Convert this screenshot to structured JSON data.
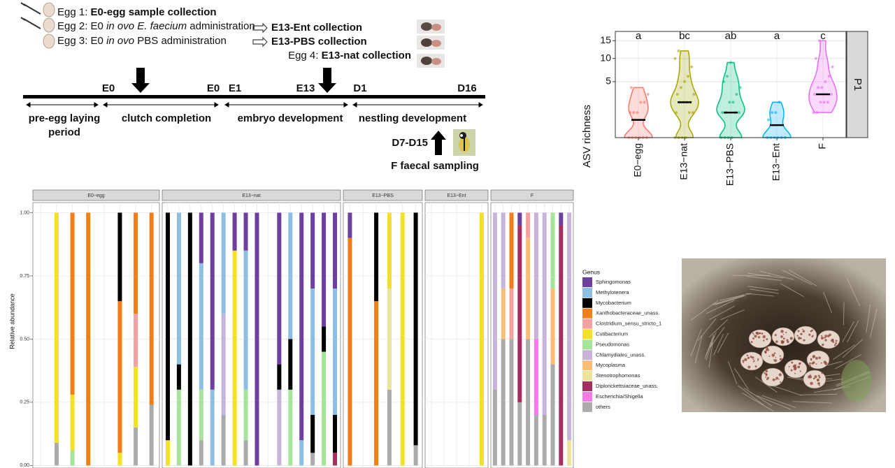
{
  "protocol": {
    "eggs": [
      [
        {
          "text": "Egg 1: ",
          "style": "normal"
        },
        {
          "text": "E0-egg sample collection",
          "style": "bold"
        }
      ],
      [
        {
          "text": "Egg 2: E0 ",
          "style": "normal"
        },
        {
          "text": "in ovo E. faecium",
          "style": "italic"
        },
        {
          "text": " administration",
          "style": "normal"
        }
      ],
      [
        {
          "text": "Egg 3: E0 ",
          "style": "normal"
        },
        {
          "text": "in ovo",
          "style": "italic"
        },
        {
          "text": " PBS administration",
          "style": "normal"
        }
      ]
    ],
    "collections": [
      [
        {
          "text": "E13-Ent collection",
          "style": "bold"
        }
      ],
      [
        {
          "text": "E13-PBS collection",
          "style": "bold"
        }
      ],
      [
        {
          "text": "Egg 4: ",
          "style": "normal"
        },
        {
          "text": "E13-nat collection",
          "style": "bold"
        }
      ]
    ]
  },
  "timeline": {
    "marks": [
      "E0",
      "E0",
      "E1",
      "E13",
      "D1",
      "D16"
    ],
    "phases": [
      [
        "pre-egg laying",
        "period"
      ],
      [
        "clutch completion"
      ],
      [
        "embryo development"
      ],
      [
        "nestling development"
      ]
    ],
    "sampling_window": "D7-D15",
    "sampling_label": "F faecal sampling"
  },
  "chart_data": [
    {
      "type": "violin",
      "y_label": "ASV richness",
      "facet": "P1",
      "scale": "sqrt",
      "ylim": [
        0,
        18
      ],
      "yticks": [
        5,
        10,
        15
      ],
      "grid": true,
      "categories": [
        "E0−egg",
        "E13−nat",
        "E13−PBS",
        "E13−Ent",
        "F"
      ],
      "colors": [
        "#f8766d",
        "#a3a500",
        "#00bf7d",
        "#00b0f6",
        "#e76bf3"
      ],
      "letters": [
        "a",
        "bc",
        "ab",
        "a",
        "c"
      ],
      "medians": [
        0.5,
        2,
        1,
        0.25,
        3
      ],
      "points": [
        [
          0,
          0,
          0,
          0,
          0,
          0,
          1,
          1,
          1,
          2,
          2,
          3,
          4
        ],
        [
          0,
          0,
          0,
          0,
          1,
          1,
          1,
          2,
          2,
          2,
          2,
          3,
          3,
          4,
          5,
          6,
          8,
          10,
          12
        ],
        [
          0,
          0,
          0,
          0,
          1,
          1,
          1,
          1,
          2,
          2,
          3,
          4,
          5,
          6,
          9
        ],
        [
          0,
          0,
          0,
          0,
          0,
          0,
          0.5,
          1,
          1,
          2
        ],
        [
          1,
          1,
          2,
          2,
          2,
          3,
          3,
          4,
          4,
          5,
          6,
          8,
          10,
          15
        ]
      ]
    },
    {
      "type": "stacked_bar",
      "y_label": "Relative abundance",
      "ylim": [
        -0.01,
        1.04
      ],
      "yticks": [
        {
          "value": 0,
          "label": "0.00"
        },
        {
          "value": 0.25,
          "label": "0.25"
        },
        {
          "value": 0.5,
          "label": "0.50"
        },
        {
          "value": 0.75,
          "label": "0.75"
        },
        {
          "value": 1,
          "label": "1.00"
        }
      ],
      "grid": true,
      "legend_title": "Genus",
      "legend_position": "right",
      "genera": [
        {
          "name": "Sphingomonas",
          "color": "#6f3f9e"
        },
        {
          "name": "Methylotenera",
          "color": "#8ebfe2"
        },
        {
          "name": "Mycobacterium",
          "color": "#000000"
        },
        {
          "name": "Xanthobacteraceae_unass.",
          "color": "#f07f1a"
        },
        {
          "name": "Clostridium_sensu_stricto_1",
          "color": "#f4a1a1"
        },
        {
          "name": "Cutibacterium",
          "color": "#f3e02a"
        },
        {
          "name": "Pseudomonas",
          "color": "#a6e39b"
        },
        {
          "name": "Chlamydiales_unass.",
          "color": "#c8b4da"
        },
        {
          "name": "Mycoplasma",
          "color": "#f8be78"
        },
        {
          "name": "Stenotrophomonas",
          "color": "#ece39c"
        },
        {
          "name": "Diplorickettsiaceae_unass.",
          "color": "#a3305e"
        },
        {
          "name": "Escherichia/Shigella",
          "color": "#f57be6"
        },
        {
          "name": "others",
          "color": "#ababab"
        }
      ],
      "facets": [
        {
          "label": "E0−egg",
          "samples": [
            [
              0,
              0,
              0,
              0,
              0,
              0,
              0,
              0,
              0,
              0,
              0,
              0,
              0
            ],
            [
              0,
              0,
              0,
              0,
              0,
              0.91,
              0,
              0,
              0,
              0,
              0,
              0,
              0.09
            ],
            [
              0,
              0,
              0,
              0.72,
              0,
              0.22,
              0.06,
              0,
              0,
              0,
              0,
              0,
              0
            ],
            [
              0,
              0,
              0,
              1,
              0,
              0,
              0,
              0,
              0,
              0,
              0,
              0,
              0
            ],
            [
              0,
              0,
              0,
              0,
              0,
              0,
              0,
              0,
              0,
              0,
              0,
              0,
              0
            ],
            [
              0,
              0,
              0.35,
              0.6,
              0,
              0.05,
              0,
              0,
              0,
              0,
              0,
              0,
              0
            ],
            [
              0,
              0,
              0,
              0.4,
              0.21,
              0.24,
              0,
              0,
              0,
              0,
              0,
              0,
              0.15
            ],
            [
              0,
              0,
              0,
              0.76,
              0,
              0,
              0,
              0,
              0,
              0,
              0,
              0,
              0.24
            ]
          ]
        },
        {
          "label": "E13−nat",
          "samples": [
            [
              0,
              0,
              0.9,
              0,
              0,
              0.1,
              0,
              0,
              0,
              0,
              0,
              0,
              0
            ],
            [
              0,
              0.6,
              0.1,
              0,
              0,
              0,
              0.3,
              0,
              0,
              0,
              0,
              0,
              0
            ],
            [
              0,
              0,
              1,
              0,
              0,
              0,
              0,
              0,
              0,
              0,
              0,
              0,
              0
            ],
            [
              0.2,
              0.5,
              0,
              0,
              0,
              0,
              0.2,
              0,
              0,
              0,
              0,
              0,
              0.1
            ],
            [
              0.7,
              0.3,
              0,
              0,
              0,
              0,
              0,
              0,
              0,
              0,
              0,
              0,
              0
            ],
            [
              0,
              0.4,
              0,
              0,
              0,
              0,
              0,
              0.4,
              0,
              0,
              0,
              0,
              0.2
            ],
            [
              0.15,
              0,
              0,
              0,
              0,
              0.85,
              0,
              0,
              0,
              0,
              0,
              0,
              0
            ],
            [
              0.15,
              0.55,
              0,
              0,
              0,
              0,
              0.2,
              0,
              0,
              0,
              0,
              0,
              0.1
            ],
            [
              1,
              0,
              0,
              0,
              0,
              0,
              0,
              0,
              0,
              0,
              0,
              0,
              0
            ],
            [
              0,
              0,
              0,
              0,
              0,
              0,
              0,
              0,
              0,
              0,
              0,
              0,
              0
            ],
            [
              0.6,
              0,
              0.1,
              0,
              0,
              0,
              0,
              0.3,
              0,
              0,
              0,
              0,
              0
            ],
            [
              0,
              0.5,
              0.2,
              0,
              0,
              0,
              0.3,
              0,
              0,
              0,
              0,
              0,
              0
            ],
            [
              0.9,
              0.1,
              0,
              0,
              0,
              0,
              0,
              0,
              0,
              0,
              0,
              0,
              0
            ],
            [
              0.3,
              0.5,
              0.15,
              0,
              0,
              0,
              0,
              0,
              0,
              0,
              0,
              0,
              0.05
            ],
            [
              0.45,
              0,
              0.1,
              0,
              0,
              0,
              0.45,
              0,
              0,
              0,
              0,
              0,
              0
            ],
            [
              0.3,
              0.5,
              0.15,
              0,
              0,
              0,
              0,
              0,
              0,
              0,
              0.05,
              0,
              0
            ]
          ]
        },
        {
          "label": "E13−PBS",
          "samples": [
            [
              0.1,
              0,
              0,
              0.9,
              0,
              0,
              0,
              0,
              0,
              0,
              0,
              0,
              0
            ],
            [
              0,
              0,
              0,
              0,
              0,
              0,
              0,
              0,
              0,
              0,
              0,
              0,
              0
            ],
            [
              0,
              0,
              0.35,
              0.65,
              0,
              0,
              0,
              0,
              0,
              0,
              0,
              0,
              0
            ],
            [
              0,
              0,
              0,
              0,
              0,
              0.3,
              0,
              0,
              0,
              0.4,
              0,
              0,
              0.3
            ],
            [
              0,
              0,
              0,
              0,
              0,
              1,
              0,
              0,
              0,
              0,
              0,
              0,
              0
            ],
            [
              0,
              0,
              0.92,
              0,
              0,
              0,
              0,
              0,
              0,
              0,
              0,
              0,
              0.08
            ]
          ]
        },
        {
          "label": "E13−Ent",
          "samples": [
            [
              0,
              0,
              0,
              0,
              0,
              0,
              0,
              0,
              0,
              0,
              0,
              0,
              0
            ],
            [
              0,
              0,
              0,
              0,
              0,
              0,
              0,
              0,
              0,
              0,
              0,
              0,
              0
            ],
            [
              0,
              0,
              0,
              0,
              0,
              0,
              0,
              0,
              0,
              0,
              0,
              0,
              0
            ],
            [
              0,
              0,
              0,
              0,
              0,
              0,
              0,
              0,
              0,
              0,
              0,
              0,
              0
            ],
            [
              0,
              0,
              0,
              0,
              0,
              1,
              0,
              0,
              0,
              0,
              0,
              0,
              0
            ]
          ]
        },
        {
          "label": "F",
          "samples": [
            [
              0,
              0,
              0,
              0,
              0,
              0,
              0,
              0.7,
              0,
              0,
              0,
              0,
              0.3
            ],
            [
              0,
              0,
              0,
              0,
              0,
              0,
              0,
              0.3,
              0.2,
              0,
              0,
              0,
              0.5
            ],
            [
              0,
              0,
              0,
              0.3,
              0.2,
              0,
              0,
              0,
              0,
              0,
              0,
              0,
              0.5
            ],
            [
              0.05,
              0,
              0,
              0,
              0,
              0,
              0,
              0,
              0,
              0,
              0.7,
              0,
              0.25
            ],
            [
              0,
              0,
              0,
              0,
              0.1,
              0,
              0,
              0,
              0.4,
              0,
              0,
              0,
              0.5
            ],
            [
              0,
              0,
              0,
              0,
              0,
              0,
              0,
              0.5,
              0,
              0,
              0,
              0.3,
              0.2
            ],
            [
              0,
              0,
              0,
              0,
              0,
              0,
              0,
              0.8,
              0,
              0,
              0,
              0,
              0.2
            ],
            [
              0,
              0,
              0,
              0,
              0,
              0,
              0.3,
              0,
              0.3,
              0,
              0,
              0,
              0.4
            ],
            [
              0.05,
              0,
              0,
              0,
              0,
              0,
              0,
              0,
              0,
              0,
              0.95,
              0,
              0
            ],
            [
              0,
              0,
              0,
              0,
              0,
              0,
              0,
              0.9,
              0,
              0.1,
              0,
              0,
              0
            ]
          ]
        }
      ]
    }
  ]
}
